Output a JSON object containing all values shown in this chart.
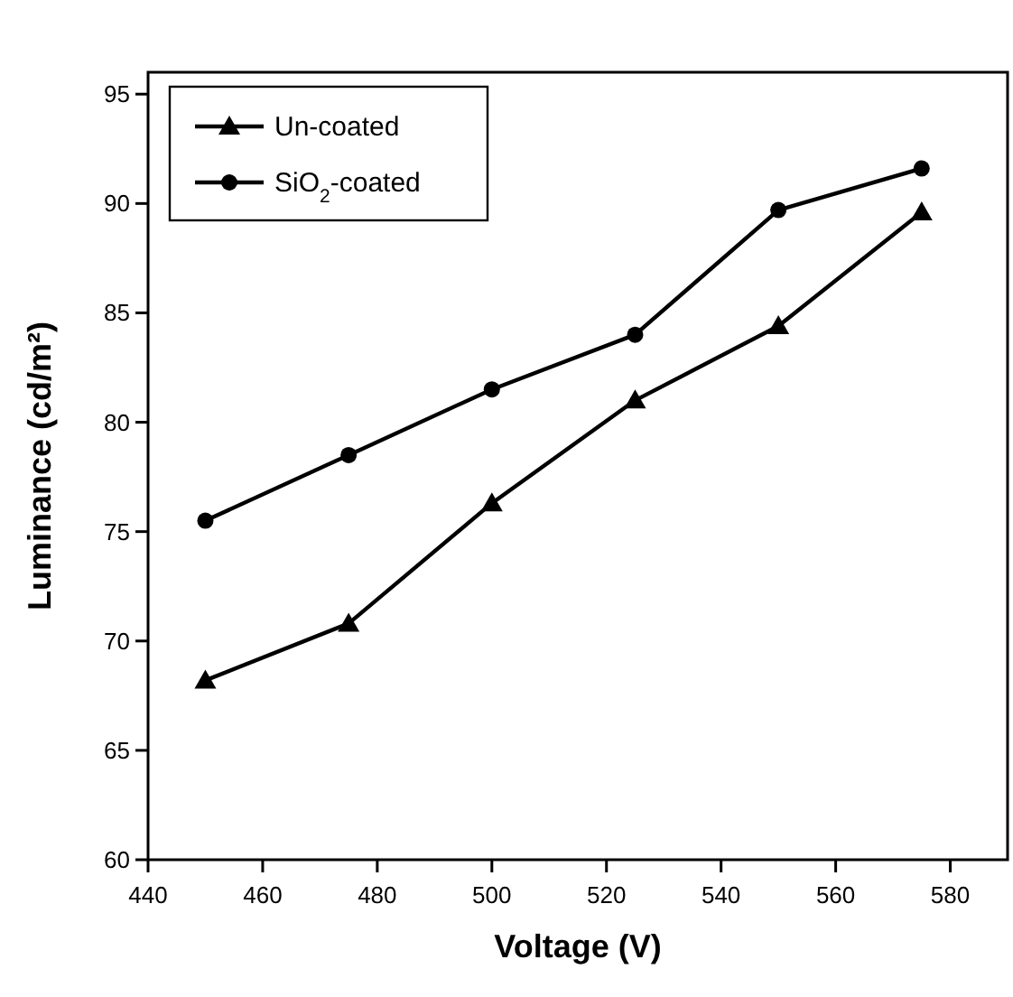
{
  "chart_data": {
    "type": "line",
    "xlabel": "Voltage (V)",
    "ylabel": "Luminance (cd/m²)",
    "x": [
      450,
      475,
      500,
      525,
      550,
      575
    ],
    "series": [
      {
        "name": "Un-coated",
        "color": "#000000",
        "marker": "triangle",
        "values": [
          68.2,
          70.8,
          76.3,
          81.0,
          84.4,
          89.6
        ]
      },
      {
        "name": "SiO$_{2}$-coated",
        "color": "#000000",
        "marker": "circle",
        "values": [
          75.5,
          78.5,
          81.5,
          84.0,
          89.7,
          91.6
        ]
      }
    ],
    "xlim": [
      440,
      590
    ],
    "xticks": [
      440,
      460,
      480,
      500,
      520,
      540,
      560,
      580
    ],
    "ylim": [
      60,
      96
    ],
    "yticks": [
      60,
      65,
      70,
      75,
      80,
      85,
      90,
      95
    ],
    "grid": false,
    "legend": "top left",
    "line_style": "solid"
  }
}
